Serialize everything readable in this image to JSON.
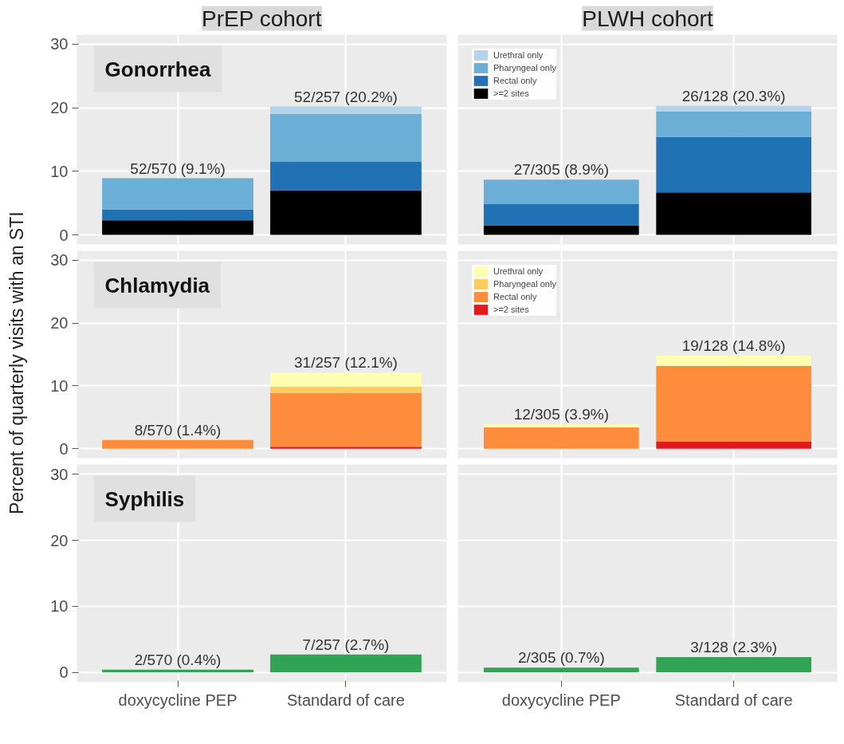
{
  "chart_data": [
    {
      "type": "bar",
      "stacked": true,
      "title": "PrEP cohort",
      "annotations": [
        "Gonorrhea"
      ],
      "categories": [
        "doxycycline PEP",
        "Standard of care"
      ],
      "ylim": [
        -1.5,
        31.5
      ],
      "yticks": [
        0,
        10,
        20,
        30
      ],
      "grid": true,
      "tick_labels": "y",
      "totals": [
        "52/570 (9.1%)",
        "52/257 (20.2%)"
      ],
      "series": [
        {
          "color": "#000000",
          "values": [
            2.3,
            7.0
          ]
        },
        {
          "color": "#2171b5",
          "values": [
            1.7,
            4.5
          ]
        },
        {
          "color": "#6baed6",
          "values": [
            4.9,
            7.5
          ]
        },
        {
          "color": "#b3d4ea",
          "values": [
            null,
            1.2
          ]
        }
      ]
    },
    {
      "type": "bar",
      "stacked": true,
      "title": "PLWH cohort",
      "categories": [
        "doxycycline PEP",
        "Standard of care"
      ],
      "ylim": [
        -1.5,
        31.5
      ],
      "yticks": [
        0,
        10,
        20,
        30
      ],
      "grid": true,
      "tick_labels": false,
      "legend": "top left",
      "totals": [
        "27/305 (8.9%)",
        "26/128 (20.3%)"
      ],
      "series": [
        {
          "name": ">=2 sites",
          "color": "#000000",
          "values": [
            1.5,
            6.7
          ]
        },
        {
          "name": "Rectal only",
          "color": "#2171b5",
          "values": [
            3.4,
            8.7
          ]
        },
        {
          "name": "Pharyngeal only",
          "color": "#6baed6",
          "values": [
            3.8,
            4.0
          ]
        },
        {
          "name": "Urethral only",
          "color": "#b3d4ea",
          "values": [
            null,
            0.9
          ]
        }
      ]
    },
    {
      "type": "bar",
      "stacked": true,
      "ylabel": "Percent of quarterly visits with an STI",
      "annotations": [
        "Chlamydia"
      ],
      "categories": [
        "doxycycline PEP",
        "Standard of care"
      ],
      "ylim": [
        -1.5,
        31.5
      ],
      "yticks": [
        0,
        10,
        20,
        30
      ],
      "grid": true,
      "tick_labels": "y",
      "totals": [
        "8/570 (1.4%)",
        "31/257 (12.1%)"
      ],
      "series": [
        {
          "color": "#e31a1c",
          "values": [
            0,
            0.3
          ]
        },
        {
          "color": "#fd8d3c",
          "values": [
            1.4,
            8.6
          ]
        },
        {
          "color": "#fecc5c",
          "values": [
            0,
            1.0
          ]
        },
        {
          "color": "#ffffb2",
          "values": [
            0,
            2.2
          ]
        }
      ]
    },
    {
      "type": "bar",
      "stacked": true,
      "categories": [
        "doxycycline PEP",
        "Standard of care"
      ],
      "ylim": [
        -1.5,
        31.5
      ],
      "yticks": [
        0,
        10,
        20,
        30
      ],
      "grid": true,
      "tick_labels": false,
      "legend": "top left",
      "totals": [
        "12/305 (3.9%)",
        "19/128 (14.8%)"
      ],
      "series": [
        {
          "name": ">=2 sites",
          "color": "#e31a1c",
          "values": [
            0,
            1.1
          ]
        },
        {
          "name": "Rectal only",
          "color": "#fd8d3c",
          "values": [
            3.4,
            12.1
          ]
        },
        {
          "name": "Pharyngeal only",
          "color": "#fecc5c",
          "values": [
            0,
            0
          ]
        },
        {
          "name": "Urethral only",
          "color": "#ffffb2",
          "values": [
            0.5,
            1.6
          ]
        }
      ]
    },
    {
      "type": "bar",
      "annotations": [
        "Syphilis"
      ],
      "categories": [
        "doxycycline PEP",
        "Standard of care"
      ],
      "ylim": [
        -1.5,
        31.5
      ],
      "yticks": [
        0,
        10,
        20,
        30
      ],
      "grid": true,
      "totals": [
        "2/570 (0.4%)",
        "7/257 (2.7%)"
      ],
      "series": [
        {
          "color": "#31a354",
          "values": [
            0.4,
            2.7
          ]
        }
      ]
    },
    {
      "type": "bar",
      "categories": [
        "doxycycline PEP",
        "Standard of care"
      ],
      "ylim": [
        -1.5,
        31.5
      ],
      "yticks": [
        0,
        10,
        20,
        30
      ],
      "grid": true,
      "tick_labels": "x",
      "totals": [
        "2/305 (0.7%)",
        "3/128 (2.3%)"
      ],
      "series": [
        {
          "color": "#31a354",
          "values": [
            0.7,
            2.3
          ]
        }
      ]
    }
  ]
}
